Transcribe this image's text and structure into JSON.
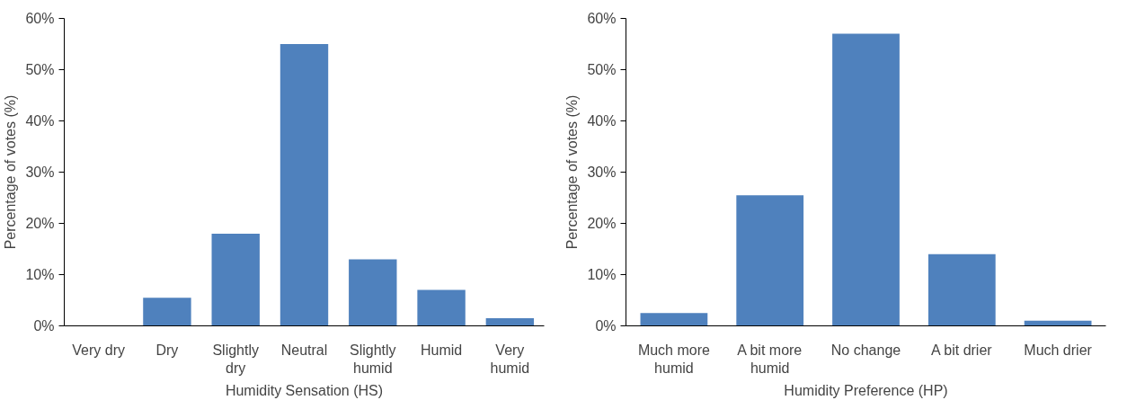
{
  "chart_data": [
    {
      "type": "bar",
      "xlabel": "Humidity Sensation (HS)",
      "ylabel": "Percentage of votes (%)",
      "categories": [
        "Very dry",
        "Dry",
        "Slightly dry",
        "Neutral",
        "Slightly humid",
        "Humid",
        "Very humid"
      ],
      "values": [
        0,
        5.5,
        18,
        55,
        13,
        7,
        1.5
      ],
      "color": "#4f81bd",
      "ylim": [
        0,
        60
      ],
      "yticks": [
        {
          "value": 0,
          "label": "0%"
        },
        {
          "value": 10,
          "label": "10%"
        },
        {
          "value": 20,
          "label": "20%"
        },
        {
          "value": 30,
          "label": "30%"
        },
        {
          "value": 40,
          "label": "40%"
        },
        {
          "value": 50,
          "label": "50%"
        },
        {
          "value": 60,
          "label": "60%"
        }
      ],
      "grid": false
    },
    {
      "type": "bar",
      "xlabel": "Humidity Preference (HP)",
      "ylabel": "Percentage of votes (%)",
      "categories": [
        "Much more humid",
        "A bit more humid",
        "No change",
        "A bit drier",
        "Much drier"
      ],
      "values": [
        2.5,
        25.5,
        57,
        14,
        1
      ],
      "color": "#4f81bd",
      "ylim": [
        0,
        60
      ],
      "yticks": [
        {
          "value": 0,
          "label": "0%"
        },
        {
          "value": 10,
          "label": "10%"
        },
        {
          "value": 20,
          "label": "20%"
        },
        {
          "value": 30,
          "label": "30%"
        },
        {
          "value": 40,
          "label": "40%"
        },
        {
          "value": 50,
          "label": "50%"
        },
        {
          "value": 60,
          "label": "60%"
        }
      ],
      "grid": false
    }
  ]
}
